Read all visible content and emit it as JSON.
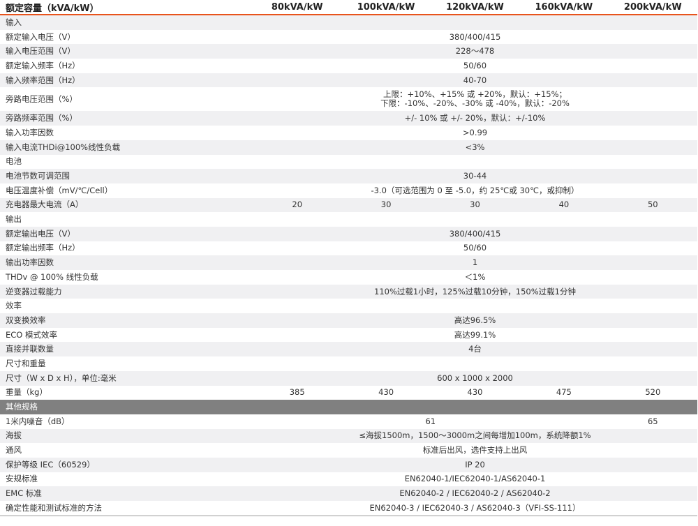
{
  "header": {
    "label": "额定容量（kVA/kW）",
    "models": [
      "80kVA/kW",
      "100kVA/kW",
      "120kVA/kW",
      "160kVA/kW",
      "200kVA/kW"
    ]
  },
  "accent_color": "#e8531c",
  "rows": [
    {
      "label": "输入",
      "cells": []
    },
    {
      "label": "额定输入电压（V）",
      "cells": [
        {
          "v": "380/400/415",
          "span": 5
        }
      ]
    },
    {
      "label": "输入电压范围（V）",
      "cells": [
        {
          "v": "228～478",
          "span": 5
        }
      ]
    },
    {
      "label": "额定输入频率（Hz）",
      "cells": [
        {
          "v": "50/60",
          "span": 5
        }
      ]
    },
    {
      "label": "输入频率范围（Hz）",
      "cells": [
        {
          "v": "40-70",
          "span": 5
        }
      ]
    },
    {
      "label": "旁路电压范围（%）",
      "cells": [
        {
          "v": "上限：+10%、+15% 或 +20%，默认：+15%；",
          "v2": "下限：-10%、-20%、-30% 或 -40%，默认：-20%",
          "span": 5
        }
      ]
    },
    {
      "label": "旁路频率范围（%）",
      "cells": [
        {
          "v": "+/- 10% 或 +/- 20%，默认：+/-10%",
          "span": 5
        }
      ]
    },
    {
      "label": "输入功率因数",
      "cells": [
        {
          "v": ">0.99",
          "span": 5
        }
      ]
    },
    {
      "label": "输入电流THDi@100%线性负载",
      "cells": [
        {
          "v": "<3%",
          "span": 5
        }
      ]
    },
    {
      "label": "电池",
      "cells": []
    },
    {
      "label": "电池节数可调范围",
      "cells": [
        {
          "v": "30-44",
          "span": 5
        }
      ]
    },
    {
      "label": "电压温度补偿（mV/℃/Cell）",
      "cells": [
        {
          "v": "-3.0（可选范围为 0 至 -5.0，约 25℃或 30℃，或抑制）",
          "span": 5
        }
      ]
    },
    {
      "label": "充电器最大电流（A）",
      "cells": [
        {
          "v": "20",
          "span": 1
        },
        {
          "v": "30",
          "span": 1
        },
        {
          "v": "30",
          "span": 1
        },
        {
          "v": "40",
          "span": 1
        },
        {
          "v": "50",
          "span": 1
        }
      ]
    },
    {
      "label": "输出",
      "cells": []
    },
    {
      "label": "额定输出电压（V）",
      "cells": [
        {
          "v": "380/400/415",
          "span": 5
        }
      ]
    },
    {
      "label": "额定输出频率（Hz）",
      "cells": [
        {
          "v": "50/60",
          "span": 5
        }
      ]
    },
    {
      "label": "输出功率因数",
      "cells": [
        {
          "v": "1",
          "span": 5
        }
      ]
    },
    {
      "label": "THDv @ 100% 线性负载",
      "cells": [
        {
          "v": "＜1%",
          "span": 5
        }
      ]
    },
    {
      "label": "逆变器过载能力",
      "cells": [
        {
          "v": "110%过载1小时，125%过载10分钟，150%过载1分钟",
          "span": 5
        }
      ]
    },
    {
      "label": "效率",
      "cells": []
    },
    {
      "label": "双变换效率",
      "cells": [
        {
          "v": "高达96.5%",
          "span": 5
        }
      ]
    },
    {
      "label": "ECO 模式效率",
      "cells": [
        {
          "v": "高达99.1%",
          "span": 5
        }
      ]
    },
    {
      "label": "直接并联数量",
      "cells": [
        {
          "v": "4台",
          "span": 5
        }
      ]
    },
    {
      "label": "尺寸和重量",
      "cells": []
    },
    {
      "label": "尺寸（W x D x H），单位:毫米",
      "cells": [
        {
          "v": "600 x 1000 x 2000",
          "span": 5
        }
      ]
    },
    {
      "label": "重量（kg）",
      "cells": [
        {
          "v": "385",
          "span": 1
        },
        {
          "v": "430",
          "span": 1
        },
        {
          "v": "430",
          "span": 1
        },
        {
          "v": "475",
          "span": 1
        },
        {
          "v": "520",
          "span": 1
        }
      ]
    },
    {
      "label": "其他规格",
      "cells": [],
      "section_dark": true
    },
    {
      "label": "1米内噪音（dB）",
      "cells": [
        {
          "v": "61",
          "span": 4
        },
        {
          "v": "65",
          "span": 1
        }
      ]
    },
    {
      "label": "海拔",
      "cells": [
        {
          "v": "≤海拔1500m，1500～3000m之间每增加100m，系统降额1%",
          "span": 5
        }
      ]
    },
    {
      "label": "通风",
      "cells": [
        {
          "v": "标准后出风，选件支持上出风",
          "span": 5
        }
      ]
    },
    {
      "label": "保护等级 IEC（60529）",
      "cells": [
        {
          "v": "IP 20",
          "span": 5
        }
      ]
    },
    {
      "label": "安规标准",
      "cells": [
        {
          "v": "EN62040-1/IEC62040-1/AS62040-1",
          "span": 5
        }
      ]
    },
    {
      "label": "EMC 标准",
      "cells": [
        {
          "v": "EN62040-2 / IEC62040-2 / AS62040-2",
          "span": 5
        }
      ]
    },
    {
      "label": "确定性能和测试标准的方法",
      "cells": [
        {
          "v": "EN62040-3 / IEC62040-3 / AS62040-3（VFI-SS-111）",
          "span": 5
        }
      ]
    }
  ]
}
